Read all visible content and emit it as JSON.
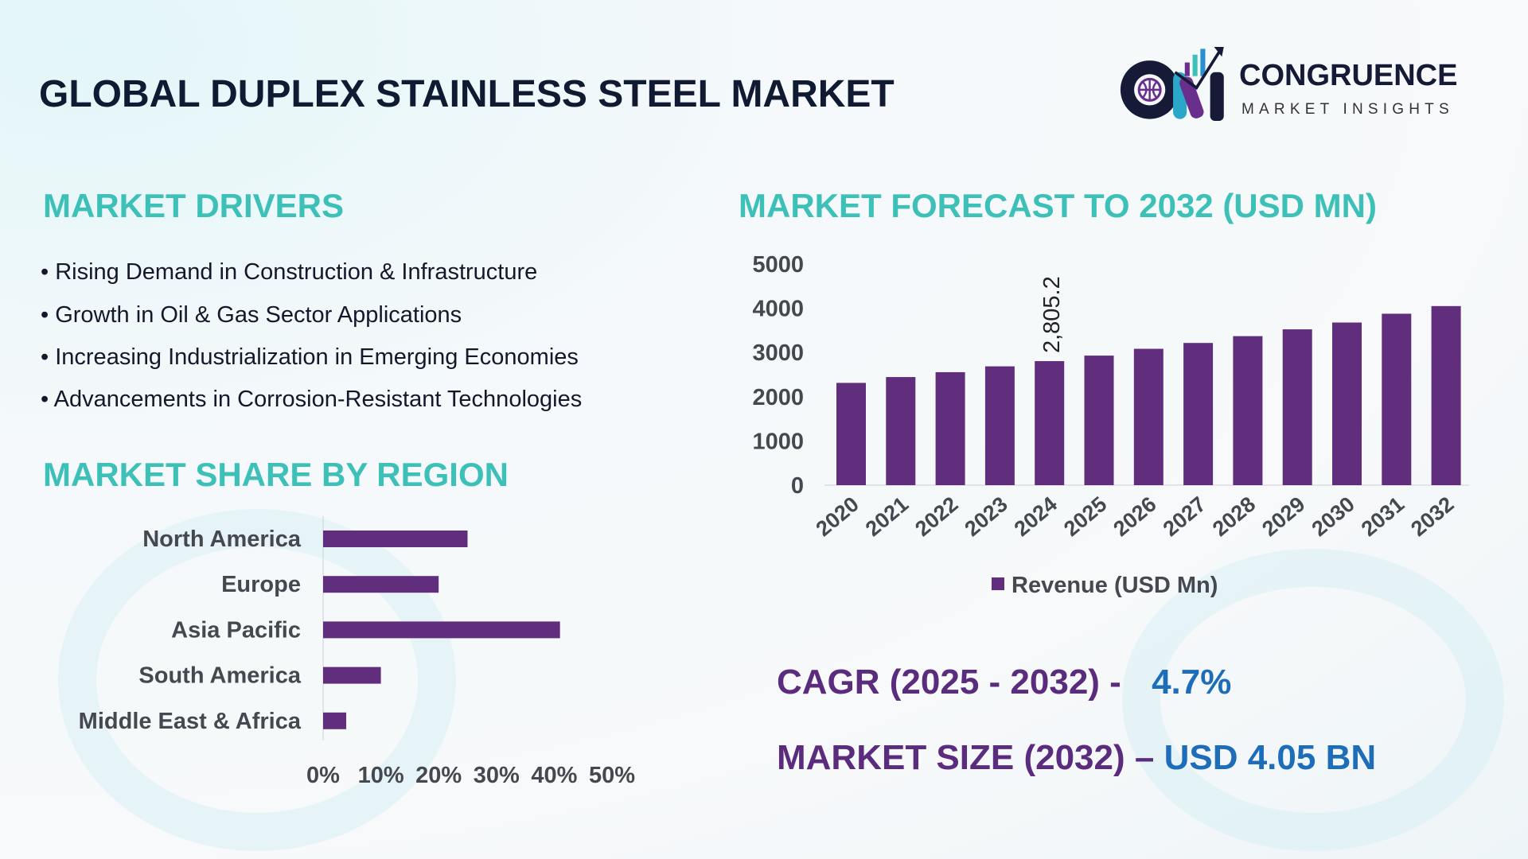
{
  "title": "GLOBAL DUPLEX STAINLESS STEEL MARKET",
  "logo": {
    "name": "CONGRUENCE",
    "tagline": "MARKET INSIGHTS"
  },
  "drivers": {
    "heading": "MARKET DRIVERS",
    "items": [
      "Rising Demand in Construction & Infrastructure",
      "Growth in Oil & Gas Sector Applications",
      "Increasing Industrialization in Emerging Economies",
      "Advancements in Corrosion-Resistant Technologies"
    ]
  },
  "colors": {
    "bar": "#612d7d",
    "heading": "#3cc0b8",
    "accent_blue": "#1d6db8",
    "purple_text": "#5b2c7d"
  },
  "chart_data": [
    {
      "type": "bar",
      "orientation": "horizontal",
      "title": "MARKET SHARE BY REGION",
      "categories": [
        "North America",
        "Europe",
        "Asia Pacific",
        "South America",
        "Middle East & Africa"
      ],
      "values": [
        25,
        20,
        41,
        10,
        4
      ],
      "unit": "%",
      "xlim": [
        0,
        50
      ],
      "xticks": [
        "0%",
        "10%",
        "20%",
        "30%",
        "40%",
        "50%"
      ],
      "grid": false
    },
    {
      "type": "bar",
      "title": "MARKET FORECAST TO 2032 (USD MN)",
      "categories": [
        "2020",
        "2021",
        "2022",
        "2023",
        "2024",
        "2025",
        "2026",
        "2027",
        "2028",
        "2029",
        "2030",
        "2031",
        "2032"
      ],
      "series": [
        {
          "name": "Revenue (USD Mn)",
          "values": [
            2313,
            2445,
            2555,
            2687,
            2805.2,
            2930,
            3084,
            3216,
            3370,
            3524,
            3678,
            3877,
            4050
          ]
        }
      ],
      "data_labels": [
        {
          "category": "2024",
          "text": "2,805.2"
        }
      ],
      "ylim": [
        0,
        5000
      ],
      "yticks": [
        "0",
        "1000",
        "2000",
        "3000",
        "4000",
        "5000"
      ],
      "grid": false,
      "legend": "bottom"
    }
  ],
  "stats": {
    "cagr_label": "CAGR (2025 - 2032) -",
    "cagr_value": "4.7%",
    "size_label": "MARKET SIZE (2032) –",
    "size_value": "USD 4.05 BN"
  }
}
